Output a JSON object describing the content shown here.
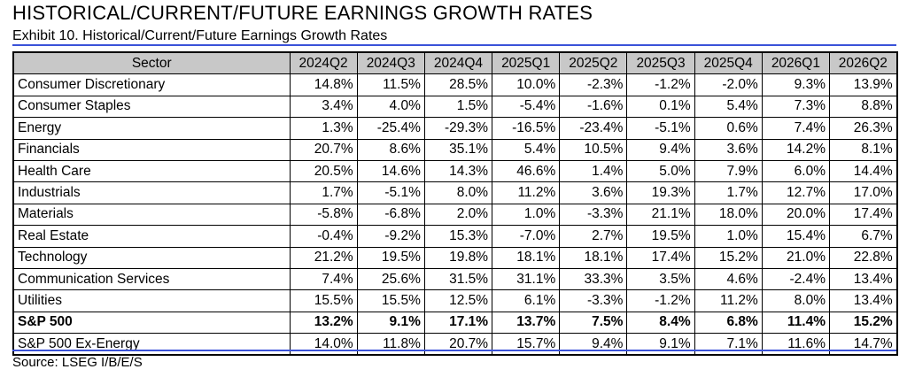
{
  "title": "HISTORICAL/CURRENT/FUTURE EARNINGS GROWTH RATES",
  "subtitle": "Exhibit 10. Historical/Current/Future Earnings Growth Rates",
  "source": "Source: LSEG I/B/E/S",
  "colors": {
    "header_bg": "#c8c8c8",
    "rule": "#3a52d9"
  },
  "table": {
    "headers": [
      "Sector",
      "2024Q2",
      "2024Q3",
      "2024Q4",
      "2025Q1",
      "2025Q2",
      "2025Q3",
      "2025Q4",
      "2026Q1",
      "2026Q2"
    ],
    "rows": [
      {
        "sector": "Consumer Discretionary",
        "values": [
          "14.8%",
          "11.5%",
          "28.5%",
          "10.0%",
          "-2.3%",
          "-1.2%",
          "-2.0%",
          "9.3%",
          "13.9%"
        ],
        "bold": false
      },
      {
        "sector": "Consumer Staples",
        "values": [
          "3.4%",
          "4.0%",
          "1.5%",
          "-5.4%",
          "-1.6%",
          "0.1%",
          "5.4%",
          "7.3%",
          "8.8%"
        ],
        "bold": false
      },
      {
        "sector": "Energy",
        "values": [
          "1.3%",
          "-25.4%",
          "-29.3%",
          "-16.5%",
          "-23.4%",
          "-5.1%",
          "0.6%",
          "7.4%",
          "26.3%"
        ],
        "bold": false
      },
      {
        "sector": "Financials",
        "values": [
          "20.7%",
          "8.6%",
          "35.1%",
          "5.4%",
          "10.5%",
          "9.4%",
          "3.6%",
          "14.2%",
          "8.1%"
        ],
        "bold": false
      },
      {
        "sector": "Health Care",
        "values": [
          "20.5%",
          "14.6%",
          "14.3%",
          "46.6%",
          "1.4%",
          "5.0%",
          "7.9%",
          "6.0%",
          "14.4%"
        ],
        "bold": false
      },
      {
        "sector": "Industrials",
        "values": [
          "1.7%",
          "-5.1%",
          "8.0%",
          "11.2%",
          "3.6%",
          "19.3%",
          "1.7%",
          "12.7%",
          "17.0%"
        ],
        "bold": false
      },
      {
        "sector": "Materials",
        "values": [
          "-5.8%",
          "-6.8%",
          "2.0%",
          "1.0%",
          "-3.3%",
          "21.1%",
          "18.0%",
          "20.0%",
          "17.4%"
        ],
        "bold": false
      },
      {
        "sector": "Real Estate",
        "values": [
          "-0.4%",
          "-9.2%",
          "15.3%",
          "-7.0%",
          "2.7%",
          "19.5%",
          "1.0%",
          "15.4%",
          "6.7%"
        ],
        "bold": false
      },
      {
        "sector": "Technology",
        "values": [
          "21.2%",
          "19.5%",
          "19.8%",
          "18.1%",
          "18.1%",
          "17.4%",
          "15.2%",
          "21.0%",
          "22.8%"
        ],
        "bold": false
      },
      {
        "sector": "Communication Services",
        "values": [
          "7.4%",
          "25.6%",
          "31.5%",
          "31.1%",
          "33.3%",
          "3.5%",
          "4.6%",
          "-2.4%",
          "13.4%"
        ],
        "bold": false
      },
      {
        "sector": "Utilities",
        "values": [
          "15.5%",
          "15.5%",
          "12.5%",
          "6.1%",
          "-3.3%",
          "-1.2%",
          "11.2%",
          "8.0%",
          "13.4%"
        ],
        "bold": false
      },
      {
        "sector": "S&P 500",
        "values": [
          "13.2%",
          "9.1%",
          "17.1%",
          "13.7%",
          "7.5%",
          "8.4%",
          "6.8%",
          "11.4%",
          "15.2%"
        ],
        "bold": true
      },
      {
        "sector": "S&P 500 Ex-Energy",
        "values": [
          "14.0%",
          "11.8%",
          "20.7%",
          "15.7%",
          "9.4%",
          "9.1%",
          "7.1%",
          "11.6%",
          "14.7%"
        ],
        "bold": false
      }
    ]
  }
}
